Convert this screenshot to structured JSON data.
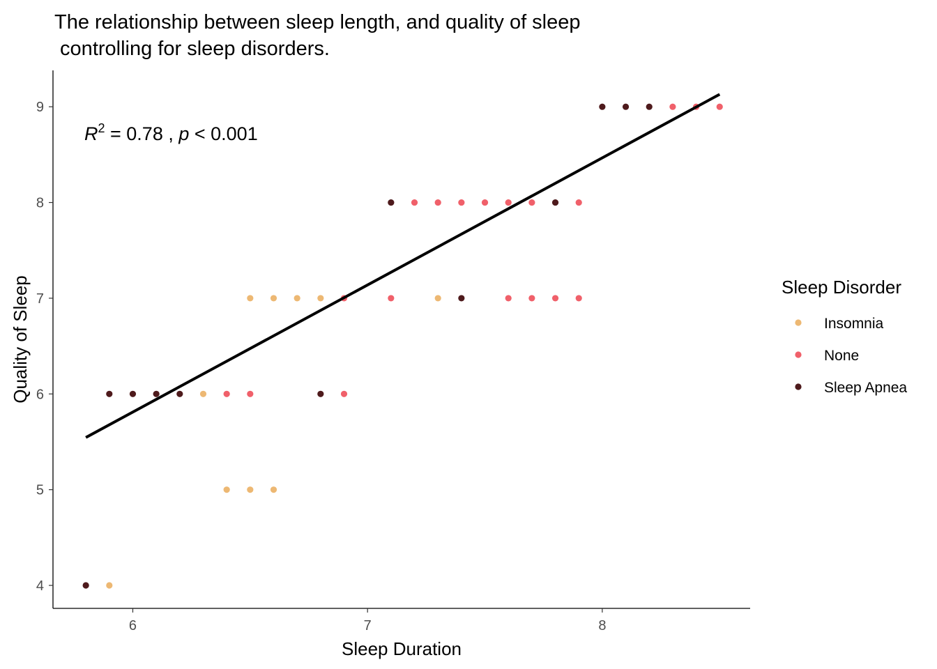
{
  "chart_data": {
    "type": "scatter",
    "title_lines": [
      "The relationship between sleep length, and quality of sleep",
      " controlling for sleep disorders."
    ],
    "xlabel": "Sleep Duration",
    "ylabel": "Quality of Sleep",
    "xlim": [
      5.66,
      8.63
    ],
    "ylim": [
      3.76,
      9.38
    ],
    "xticks": [
      6,
      7,
      8
    ],
    "yticks": [
      4,
      5,
      6,
      7,
      8,
      9
    ],
    "annotation": {
      "r_label": "R",
      "r_exp": "2",
      "r_value": " = 0.78 , ",
      "p_label": "p",
      "p_value": " < 0.001"
    },
    "legend": {
      "title": "Sleep Disorder",
      "position": "right"
    },
    "regression_line": {
      "x": [
        5.8,
        8.5
      ],
      "y": [
        5.545,
        9.13
      ],
      "color": "#000000"
    },
    "series": [
      {
        "name": "Insomnia",
        "color": "#EDB873",
        "x": [
          5.9,
          6.3,
          6.4,
          6.5,
          6.5,
          6.6,
          6.6,
          6.7,
          6.8,
          7.3
        ],
        "y": [
          4,
          6,
          5,
          5,
          7,
          5,
          7,
          7,
          7,
          7
        ]
      },
      {
        "name": "None",
        "color": "#F0606A",
        "x": [
          6.4,
          6.5,
          6.9,
          6.9,
          7.1,
          7.2,
          7.3,
          7.4,
          7.5,
          7.6,
          7.6,
          7.7,
          7.7,
          7.8,
          7.9,
          7.9,
          8.3,
          8.4,
          8.5
        ],
        "y": [
          6,
          6,
          6,
          7,
          7,
          8,
          8,
          8,
          8,
          7,
          8,
          7,
          8,
          7,
          7,
          8,
          9,
          9,
          9
        ]
      },
      {
        "name": "Sleep Apnea",
        "color": "#4E1A1C",
        "x": [
          5.8,
          5.9,
          6.0,
          6.1,
          6.2,
          6.8,
          7.1,
          7.4,
          7.8,
          8.0,
          8.1,
          8.2
        ],
        "y": [
          4,
          6,
          6,
          6,
          6,
          6,
          8,
          7,
          8,
          9,
          9,
          9
        ]
      }
    ]
  }
}
